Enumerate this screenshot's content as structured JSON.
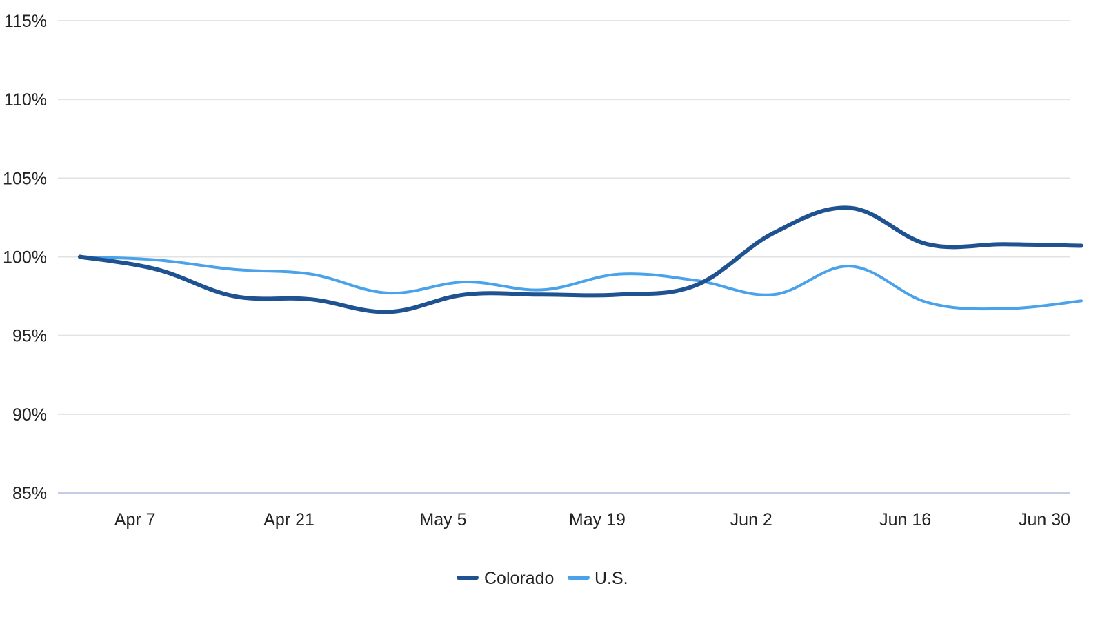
{
  "chart_data": {
    "type": "line",
    "title": "",
    "xlabel": "",
    "ylabel": "",
    "x_tick_labels": [
      "Apr 7",
      "Apr 21",
      "May 5",
      "May 19",
      "Jun 2",
      "Jun 16",
      "Jun 30"
    ],
    "y_tick_labels": [
      "85%",
      "90%",
      "95%",
      "100%",
      "105%",
      "110%",
      "115%"
    ],
    "y_ticks": [
      85,
      90,
      95,
      100,
      105,
      110,
      115
    ],
    "ylim": [
      85,
      115
    ],
    "x": [
      "2020-04-02",
      "2020-04-09",
      "2020-04-16",
      "2020-04-23",
      "2020-04-30",
      "2020-05-07",
      "2020-05-14",
      "2020-05-21",
      "2020-05-28",
      "2020-06-04",
      "2020-06-11",
      "2020-06-18",
      "2020-06-25",
      "2020-07-02"
    ],
    "x_range": [
      "2020-03-31",
      "2020-07-01"
    ],
    "series": [
      {
        "name": "Colorado",
        "color": "#1f5291",
        "values": [
          100.0,
          99.2,
          97.5,
          97.3,
          96.5,
          97.6,
          97.6,
          97.6,
          98.2,
          101.5,
          103.1,
          100.8,
          100.8,
          100.7
        ]
      },
      {
        "name": "U.S.",
        "color": "#4aa3ea",
        "values": [
          100.0,
          99.8,
          99.2,
          98.9,
          97.7,
          98.4,
          97.9,
          98.9,
          98.5,
          97.6,
          99.4,
          97.1,
          96.7,
          97.2
        ]
      }
    ],
    "grid": true,
    "legend_position": "bottom-center"
  }
}
